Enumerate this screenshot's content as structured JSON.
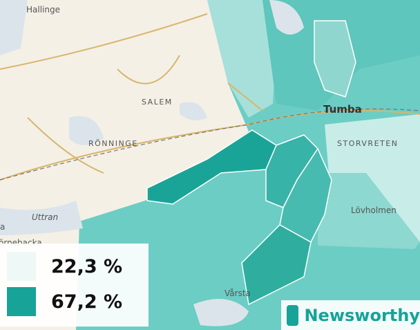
{
  "map": {
    "places": [
      "Hallinge",
      "SALEM",
      "RÖNNINGE",
      "Tumba",
      "STORVRETEN",
      "Lövholmen",
      "Uttran",
      "Vårsta",
      "örnebacka",
      "a"
    ],
    "legend": [
      {
        "label": "22,3 %",
        "color": "#eef9f7"
      },
      {
        "label": "67,2 %",
        "color": "#17a398"
      }
    ],
    "brand": "Newsworthy"
  }
}
